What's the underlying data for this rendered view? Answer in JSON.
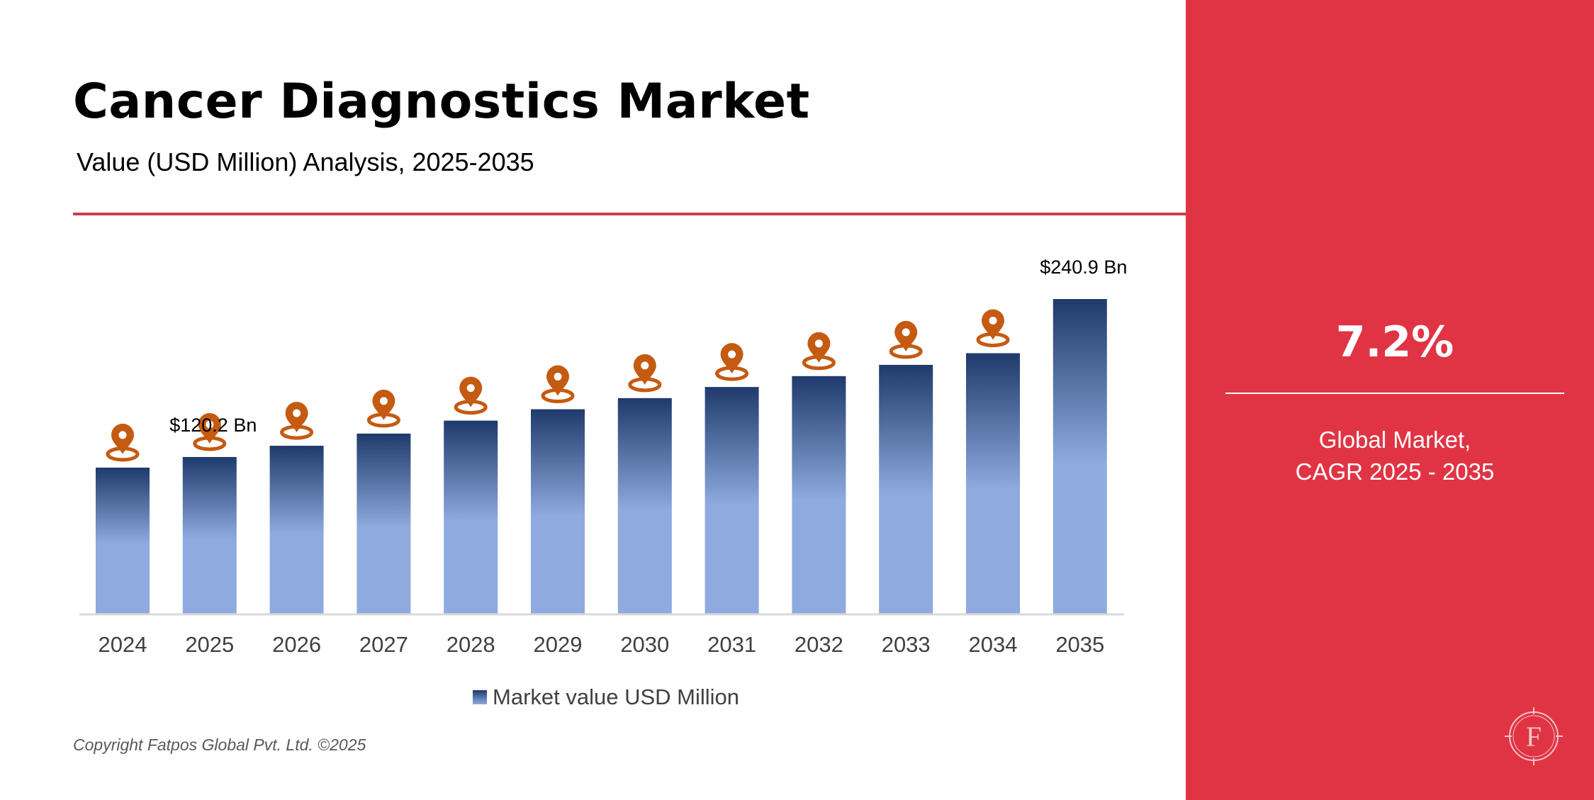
{
  "header": {
    "title": "Cancer Diagnostics Market",
    "subtitle": "Value (USD Million) Analysis, 2025-2035"
  },
  "chart_data": {
    "type": "bar",
    "categories": [
      "2024",
      "2025",
      "2026",
      "2027",
      "2028",
      "2029",
      "2030",
      "2031",
      "2032",
      "2033",
      "2034",
      "2035"
    ],
    "series": [
      {
        "name": "Market value USD Million",
        "values": [
          112.1,
          120.2,
          128.8,
          138.1,
          148.0,
          156.7,
          165.2,
          173.7,
          182.0,
          190.6,
          199.5,
          240.9
        ]
      }
    ],
    "data_labels": [
      {
        "index": 1,
        "text": "$120.2 Bn"
      },
      {
        "index": 11,
        "text": "$240.9 Bn"
      }
    ],
    "marker_icon": "location-pin-icon",
    "marker_indices": [
      0,
      1,
      2,
      3,
      4,
      5,
      6,
      7,
      8,
      9,
      10
    ],
    "ylim": [
      0,
      240.9
    ],
    "grid": false,
    "legend_position": "bottom",
    "xlabel": "",
    "ylabel": "",
    "colors": {
      "bar_top": "#1f3a6b",
      "bar_bottom": "#8eaadf",
      "marker": "#c55a11",
      "axis": "#d9d9d9",
      "tick_label": "#404040"
    }
  },
  "legend": {
    "label": "Market value USD Million"
  },
  "side_panel": {
    "cagr_value": "7.2%",
    "cagr_label_line1": "Global Market,",
    "cagr_label_line2": "CAGR 2025 - 2035",
    "background": "#e03444",
    "logo_icon": "fatpos-f-logo-icon",
    "logo_letter": "F"
  },
  "footer": {
    "copyright": "Copyright Fatpos Global Pvt. Ltd. ©2025"
  }
}
